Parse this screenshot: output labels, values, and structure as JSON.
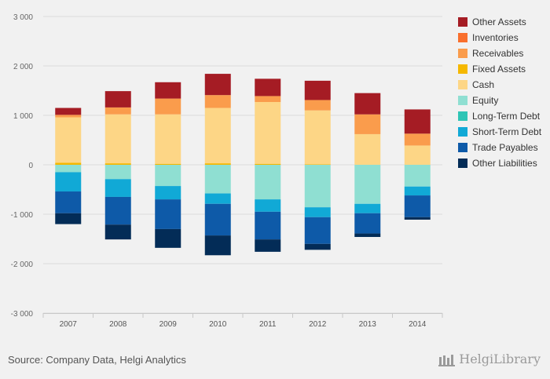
{
  "chart_data": {
    "type": "bar",
    "stacked": true,
    "categories": [
      "2007",
      "2008",
      "2009",
      "2010",
      "2011",
      "2012",
      "2013",
      "2014"
    ],
    "ylim": [
      -3000,
      3000
    ],
    "yticks": [
      3000,
      2000,
      1000,
      0,
      -1000,
      -2000,
      -3000
    ],
    "ytick_labels": [
      "3 000",
      "2 000",
      "1 000",
      "0",
      "-1 000",
      "-2 000",
      "-3 000"
    ],
    "grid": true,
    "legend_position": "right",
    "positive_series": [
      {
        "name": "Fixed Assets",
        "color": "#f5b800",
        "values": [
          40,
          30,
          20,
          30,
          20,
          10,
          0,
          0
        ]
      },
      {
        "name": "Cash",
        "color": "#fdd686",
        "values": [
          920,
          990,
          1000,
          1120,
          1250,
          1090,
          620,
          390
        ]
      },
      {
        "name": "Receivables",
        "color": "#fa9c4c",
        "values": [
          50,
          140,
          320,
          260,
          120,
          210,
          400,
          240
        ]
      },
      {
        "name": "Inventories",
        "color": "#f96f2d",
        "values": [
          0,
          0,
          0,
          0,
          0,
          0,
          0,
          0
        ]
      },
      {
        "name": "Other Assets",
        "color": "#a51c24",
        "values": [
          140,
          330,
          330,
          430,
          350,
          390,
          430,
          490
        ]
      }
    ],
    "negative_series": [
      {
        "name": "Equity",
        "color": "#8fdfd2",
        "values": [
          -150,
          -290,
          -430,
          -580,
          -700,
          -860,
          -790,
          -440
        ]
      },
      {
        "name": "Long-Term Debt",
        "color": "#2fc5b5",
        "values": [
          0,
          0,
          0,
          0,
          0,
          0,
          0,
          0
        ]
      },
      {
        "name": "Short-Term Debt",
        "color": "#11a9d6",
        "values": [
          -390,
          -360,
          -270,
          -210,
          -250,
          -200,
          -190,
          -180
        ]
      },
      {
        "name": "Trade Payables",
        "color": "#0e5aa8",
        "values": [
          -440,
          -560,
          -600,
          -640,
          -560,
          -540,
          -410,
          -440
        ]
      },
      {
        "name": "Other Liabilities",
        "color": "#032c57",
        "values": [
          -220,
          -300,
          -380,
          -400,
          -250,
          -120,
          -70,
          -50
        ]
      }
    ],
    "legend": [
      {
        "name": "Other Assets",
        "color": "#a51c24"
      },
      {
        "name": "Inventories",
        "color": "#f96f2d"
      },
      {
        "name": "Receivables",
        "color": "#fa9c4c"
      },
      {
        "name": "Fixed Assets",
        "color": "#f5b800"
      },
      {
        "name": "Cash",
        "color": "#fdd686"
      },
      {
        "name": "Equity",
        "color": "#8fdfd2"
      },
      {
        "name": "Long-Term Debt",
        "color": "#2fc5b5"
      },
      {
        "name": "Short-Term Debt",
        "color": "#11a9d6"
      },
      {
        "name": "Trade Payables",
        "color": "#0e5aa8"
      },
      {
        "name": "Other Liabilities",
        "color": "#032c57"
      }
    ]
  },
  "footer": {
    "source": "Source: Company Data, Helgi Analytics",
    "brand": "HelgiLibrary"
  }
}
